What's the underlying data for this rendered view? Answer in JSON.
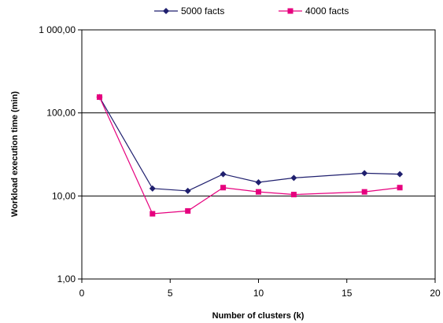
{
  "chart_data": {
    "type": "line",
    "title": "",
    "xlabel": "Number of clusters (k)",
    "ylabel": "Workload execution time (min)",
    "xlim": [
      0,
      20
    ],
    "ylim": [
      1,
      1000
    ],
    "y_scale": "log",
    "x_ticks": [
      0,
      5,
      10,
      15,
      20
    ],
    "x_tick_labels": [
      "0",
      "5",
      "10",
      "15",
      "20"
    ],
    "y_ticks": [
      1,
      10,
      100,
      1000
    ],
    "y_tick_labels": [
      "1,00",
      "10,00",
      "100,00",
      "1 000,00"
    ],
    "grid": "horizontal major lines",
    "legend_position": "top",
    "series": [
      {
        "name": "5000 facts",
        "color": "#1f1f6e",
        "marker": "diamond",
        "x": [
          1,
          4,
          6,
          8,
          10,
          12,
          16,
          18
        ],
        "y": [
          155,
          12.3,
          11.5,
          18.3,
          14.6,
          16.5,
          18.8,
          18.3
        ]
      },
      {
        "name": "4000 facts",
        "color": "#e6007e",
        "marker": "square",
        "x": [
          1,
          4,
          6,
          8,
          10,
          12,
          16,
          18
        ],
        "y": [
          155,
          6.1,
          6.6,
          12.6,
          11.2,
          10.4,
          11.2,
          12.6
        ]
      }
    ]
  }
}
